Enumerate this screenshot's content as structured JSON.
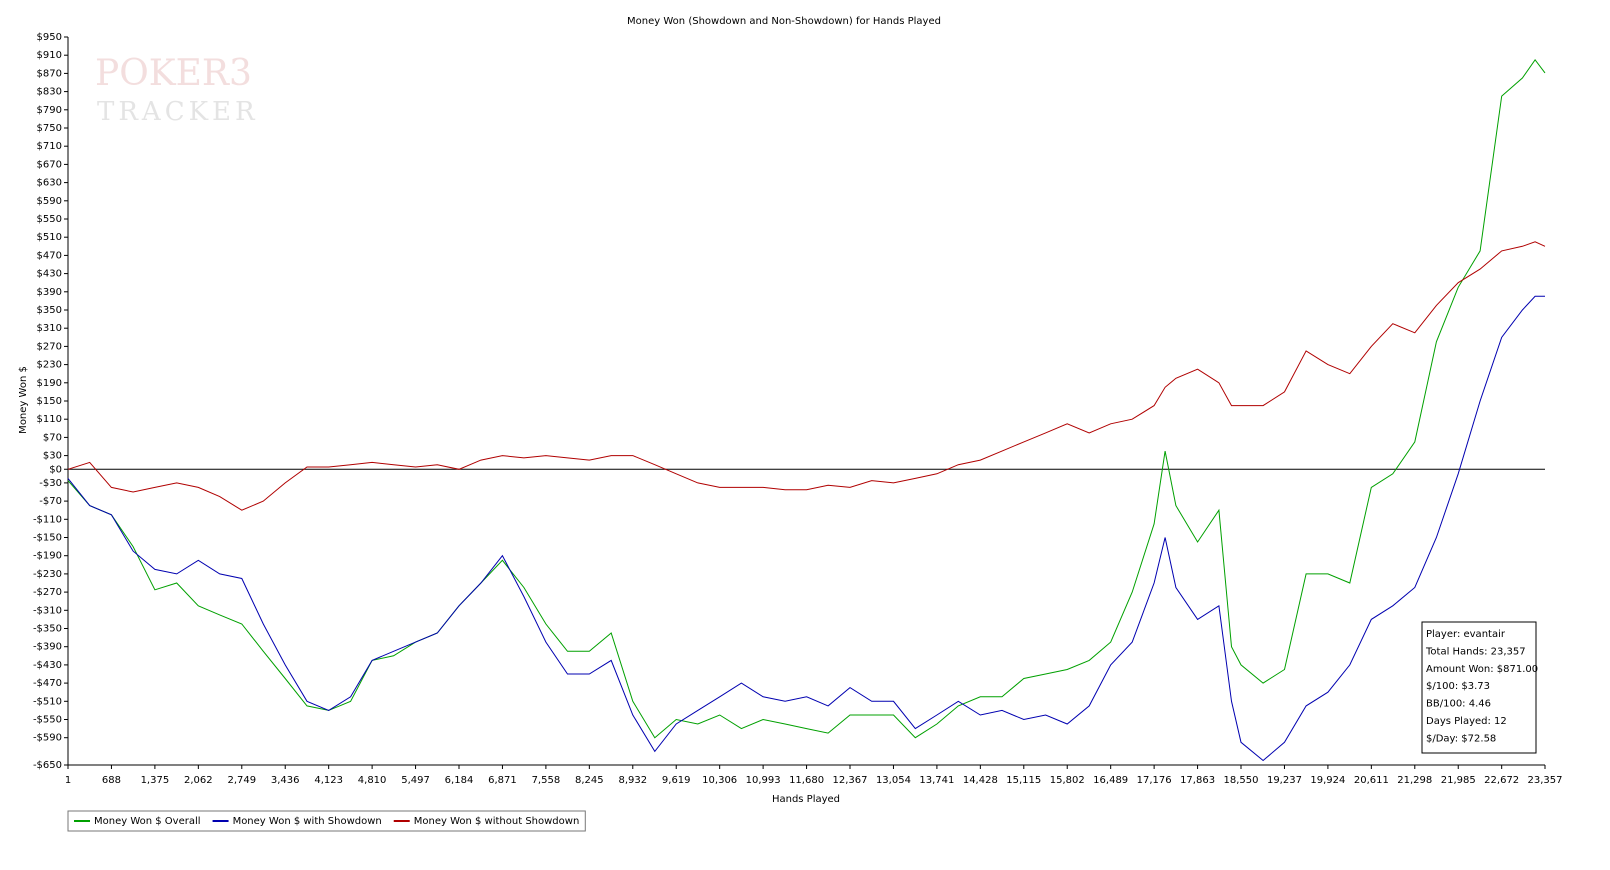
{
  "chart_data": {
    "type": "line",
    "title": "Money Won (Showdown and Non-Showdown) for Hands Played",
    "xlabel": "Hands Played",
    "ylabel": "Money Won $",
    "watermark": [
      "POKER3",
      "TRACKER"
    ],
    "x": [
      1,
      344,
      688,
      1030,
      1375,
      1720,
      2062,
      2400,
      2749,
      3090,
      3436,
      3780,
      4123,
      4470,
      4810,
      5150,
      5497,
      5840,
      6184,
      6530,
      6871,
      7210,
      7558,
      7900,
      8245,
      8590,
      8932,
      9280,
      9619,
      9960,
      10306,
      10650,
      10993,
      11340,
      11680,
      12020,
      12367,
      12710,
      13054,
      13400,
      13741,
      14080,
      14428,
      14770,
      15115,
      15460,
      15802,
      16150,
      16489,
      16830,
      17176,
      17350,
      17520,
      17863,
      18200,
      18400,
      18550,
      18900,
      19237,
      19580,
      19924,
      20270,
      20611,
      20950,
      21298,
      21640,
      21985,
      22330,
      22672,
      23000,
      23200,
      23357
    ],
    "series": [
      {
        "name": "Money Won $ Overall",
        "color": "#00a000",
        "values": [
          -25,
          -80,
          -100,
          -170,
          -265,
          -250,
          -300,
          -320,
          -340,
          -400,
          -460,
          -520,
          -530,
          -510,
          -420,
          -410,
          -380,
          -360,
          -300,
          -250,
          -200,
          -260,
          -340,
          -400,
          -400,
          -360,
          -510,
          -590,
          -550,
          -560,
          -540,
          -570,
          -550,
          -560,
          -570,
          -580,
          -540,
          -540,
          -540,
          -590,
          -560,
          -520,
          -500,
          -500,
          -460,
          -450,
          -440,
          -420,
          -380,
          -270,
          -120,
          40,
          -80,
          -160,
          -90,
          -390,
          -430,
          -470,
          -440,
          -230,
          -230,
          -250,
          -40,
          -10,
          60,
          280,
          400,
          480,
          820,
          860,
          900,
          871
        ]
      },
      {
        "name": "Money Won $ with Showdown",
        "color": "#0000b0",
        "values": [
          -20,
          -80,
          -100,
          -180,
          -220,
          -230,
          -200,
          -230,
          -240,
          -340,
          -430,
          -510,
          -530,
          -500,
          -420,
          -400,
          -380,
          -360,
          -300,
          -250,
          -190,
          -280,
          -380,
          -450,
          -450,
          -420,
          -540,
          -620,
          -560,
          -530,
          -500,
          -470,
          -500,
          -510,
          -500,
          -520,
          -480,
          -510,
          -510,
          -570,
          -540,
          -510,
          -540,
          -530,
          -550,
          -540,
          -560,
          -520,
          -430,
          -380,
          -250,
          -150,
          -260,
          -330,
          -300,
          -510,
          -600,
          -640,
          -600,
          -520,
          -490,
          -430,
          -330,
          -300,
          -260,
          -150,
          -10,
          150,
          290,
          350,
          380,
          380
        ]
      },
      {
        "name": "Money Won $ without Showdown",
        "color": "#b00000",
        "values": [
          0,
          15,
          -40,
          -50,
          -40,
          -30,
          -40,
          -60,
          -90,
          -70,
          -30,
          5,
          5,
          10,
          15,
          10,
          5,
          10,
          0,
          20,
          30,
          25,
          30,
          25,
          20,
          30,
          30,
          10,
          -10,
          -30,
          -40,
          -40,
          -40,
          -45,
          -45,
          -35,
          -40,
          -25,
          -30,
          -20,
          -10,
          10,
          20,
          40,
          60,
          80,
          100,
          80,
          100,
          110,
          140,
          180,
          200,
          220,
          190,
          140,
          140,
          140,
          170,
          260,
          230,
          210,
          270,
          320,
          300,
          360,
          410,
          440,
          480,
          490,
          500,
          490
        ]
      }
    ],
    "xlim": [
      1,
      23357
    ],
    "xticks": [
      1,
      688,
      {
        "value": 1375,
        "label": "1,375"
      },
      {
        "value": 2062,
        "label": "2,062"
      },
      {
        "value": 2749,
        "label": "2,749"
      },
      {
        "value": 3436,
        "label": "3,436"
      },
      {
        "value": 4123,
        "label": "4,123"
      },
      {
        "value": 4810,
        "label": "4,810"
      },
      {
        "value": 5497,
        "label": "5,497"
      },
      {
        "value": 6184,
        "label": "6,184"
      },
      {
        "value": 6871,
        "label": "6,871"
      },
      {
        "value": 7558,
        "label": "7,558"
      },
      {
        "value": 8245,
        "label": "8,245"
      },
      {
        "value": 8932,
        "label": "8,932"
      },
      {
        "value": 9619,
        "label": "9,619"
      },
      {
        "value": 10306,
        "label": "10,306"
      },
      {
        "value": 10993,
        "label": "10,993"
      },
      {
        "value": 11680,
        "label": "11,680"
      },
      {
        "value": 12367,
        "label": "12,367"
      },
      {
        "value": 13054,
        "label": "13,054"
      },
      {
        "value": 13741,
        "label": "13,741"
      },
      {
        "value": 14428,
        "label": "14,428"
      },
      {
        "value": 15115,
        "label": "15,115"
      },
      {
        "value": 15802,
        "label": "15,802"
      },
      {
        "value": 16489,
        "label": "16,489"
      },
      {
        "value": 17176,
        "label": "17,176"
      },
      {
        "value": 17863,
        "label": "17,863"
      },
      {
        "value": 18550,
        "label": "18,550"
      },
      {
        "value": 19237,
        "label": "19,237"
      },
      {
        "value": 19924,
        "label": "19,924"
      },
      {
        "value": 20611,
        "label": "20,611"
      },
      {
        "value": 21298,
        "label": "21,298"
      },
      {
        "value": 21985,
        "label": "21,985"
      },
      {
        "value": 22672,
        "label": "22,672"
      },
      {
        "value": 23357,
        "label": "23,357"
      }
    ],
    "ylim": [
      -650,
      950
    ],
    "yticks": [
      {
        "value": 950,
        "label": "$950"
      },
      {
        "value": 910,
        "label": "$910"
      },
      {
        "value": 870,
        "label": "$870"
      },
      {
        "value": 830,
        "label": "$830"
      },
      {
        "value": 790,
        "label": "$790"
      },
      {
        "value": 750,
        "label": "$750"
      },
      {
        "value": 710,
        "label": "$710"
      },
      {
        "value": 670,
        "label": "$670"
      },
      {
        "value": 630,
        "label": "$630"
      },
      {
        "value": 590,
        "label": "$590"
      },
      {
        "value": 550,
        "label": "$550"
      },
      {
        "value": 510,
        "label": "$510"
      },
      {
        "value": 470,
        "label": "$470"
      },
      {
        "value": 430,
        "label": "$430"
      },
      {
        "value": 390,
        "label": "$390"
      },
      {
        "value": 350,
        "label": "$350"
      },
      {
        "value": 310,
        "label": "$310"
      },
      {
        "value": 270,
        "label": "$270"
      },
      {
        "value": 230,
        "label": "$230"
      },
      {
        "value": 190,
        "label": "$190"
      },
      {
        "value": 150,
        "label": "$150"
      },
      {
        "value": 110,
        "label": "$110"
      },
      {
        "value": 70,
        "label": "$70"
      },
      {
        "value": 30,
        "label": "$30"
      },
      {
        "value": 0,
        "label": "$0"
      },
      {
        "value": -30,
        "label": "-$30"
      },
      {
        "value": -70,
        "label": "-$70"
      },
      {
        "value": -110,
        "label": "-$110"
      },
      {
        "value": -150,
        "label": "-$150"
      },
      {
        "value": -190,
        "label": "-$190"
      },
      {
        "value": -230,
        "label": "-$230"
      },
      {
        "value": -270,
        "label": "-$270"
      },
      {
        "value": -310,
        "label": "-$310"
      },
      {
        "value": -350,
        "label": "-$350"
      },
      {
        "value": -390,
        "label": "-$390"
      },
      {
        "value": -430,
        "label": "-$430"
      },
      {
        "value": -470,
        "label": "-$470"
      },
      {
        "value": -510,
        "label": "-$510"
      },
      {
        "value": -550,
        "label": "-$550"
      },
      {
        "value": -590,
        "label": "-$590"
      },
      {
        "value": -650,
        "label": "-$650"
      }
    ],
    "zero_line": true,
    "grid": false,
    "legend": "bottom-left",
    "info_box": [
      "Player: evantair",
      "Total Hands: 23,357",
      "Amount Won: $871.00",
      "$/100: $3.73",
      "BB/100: 4.46",
      "Days Played: 12",
      "$/Day: $72.58"
    ]
  }
}
